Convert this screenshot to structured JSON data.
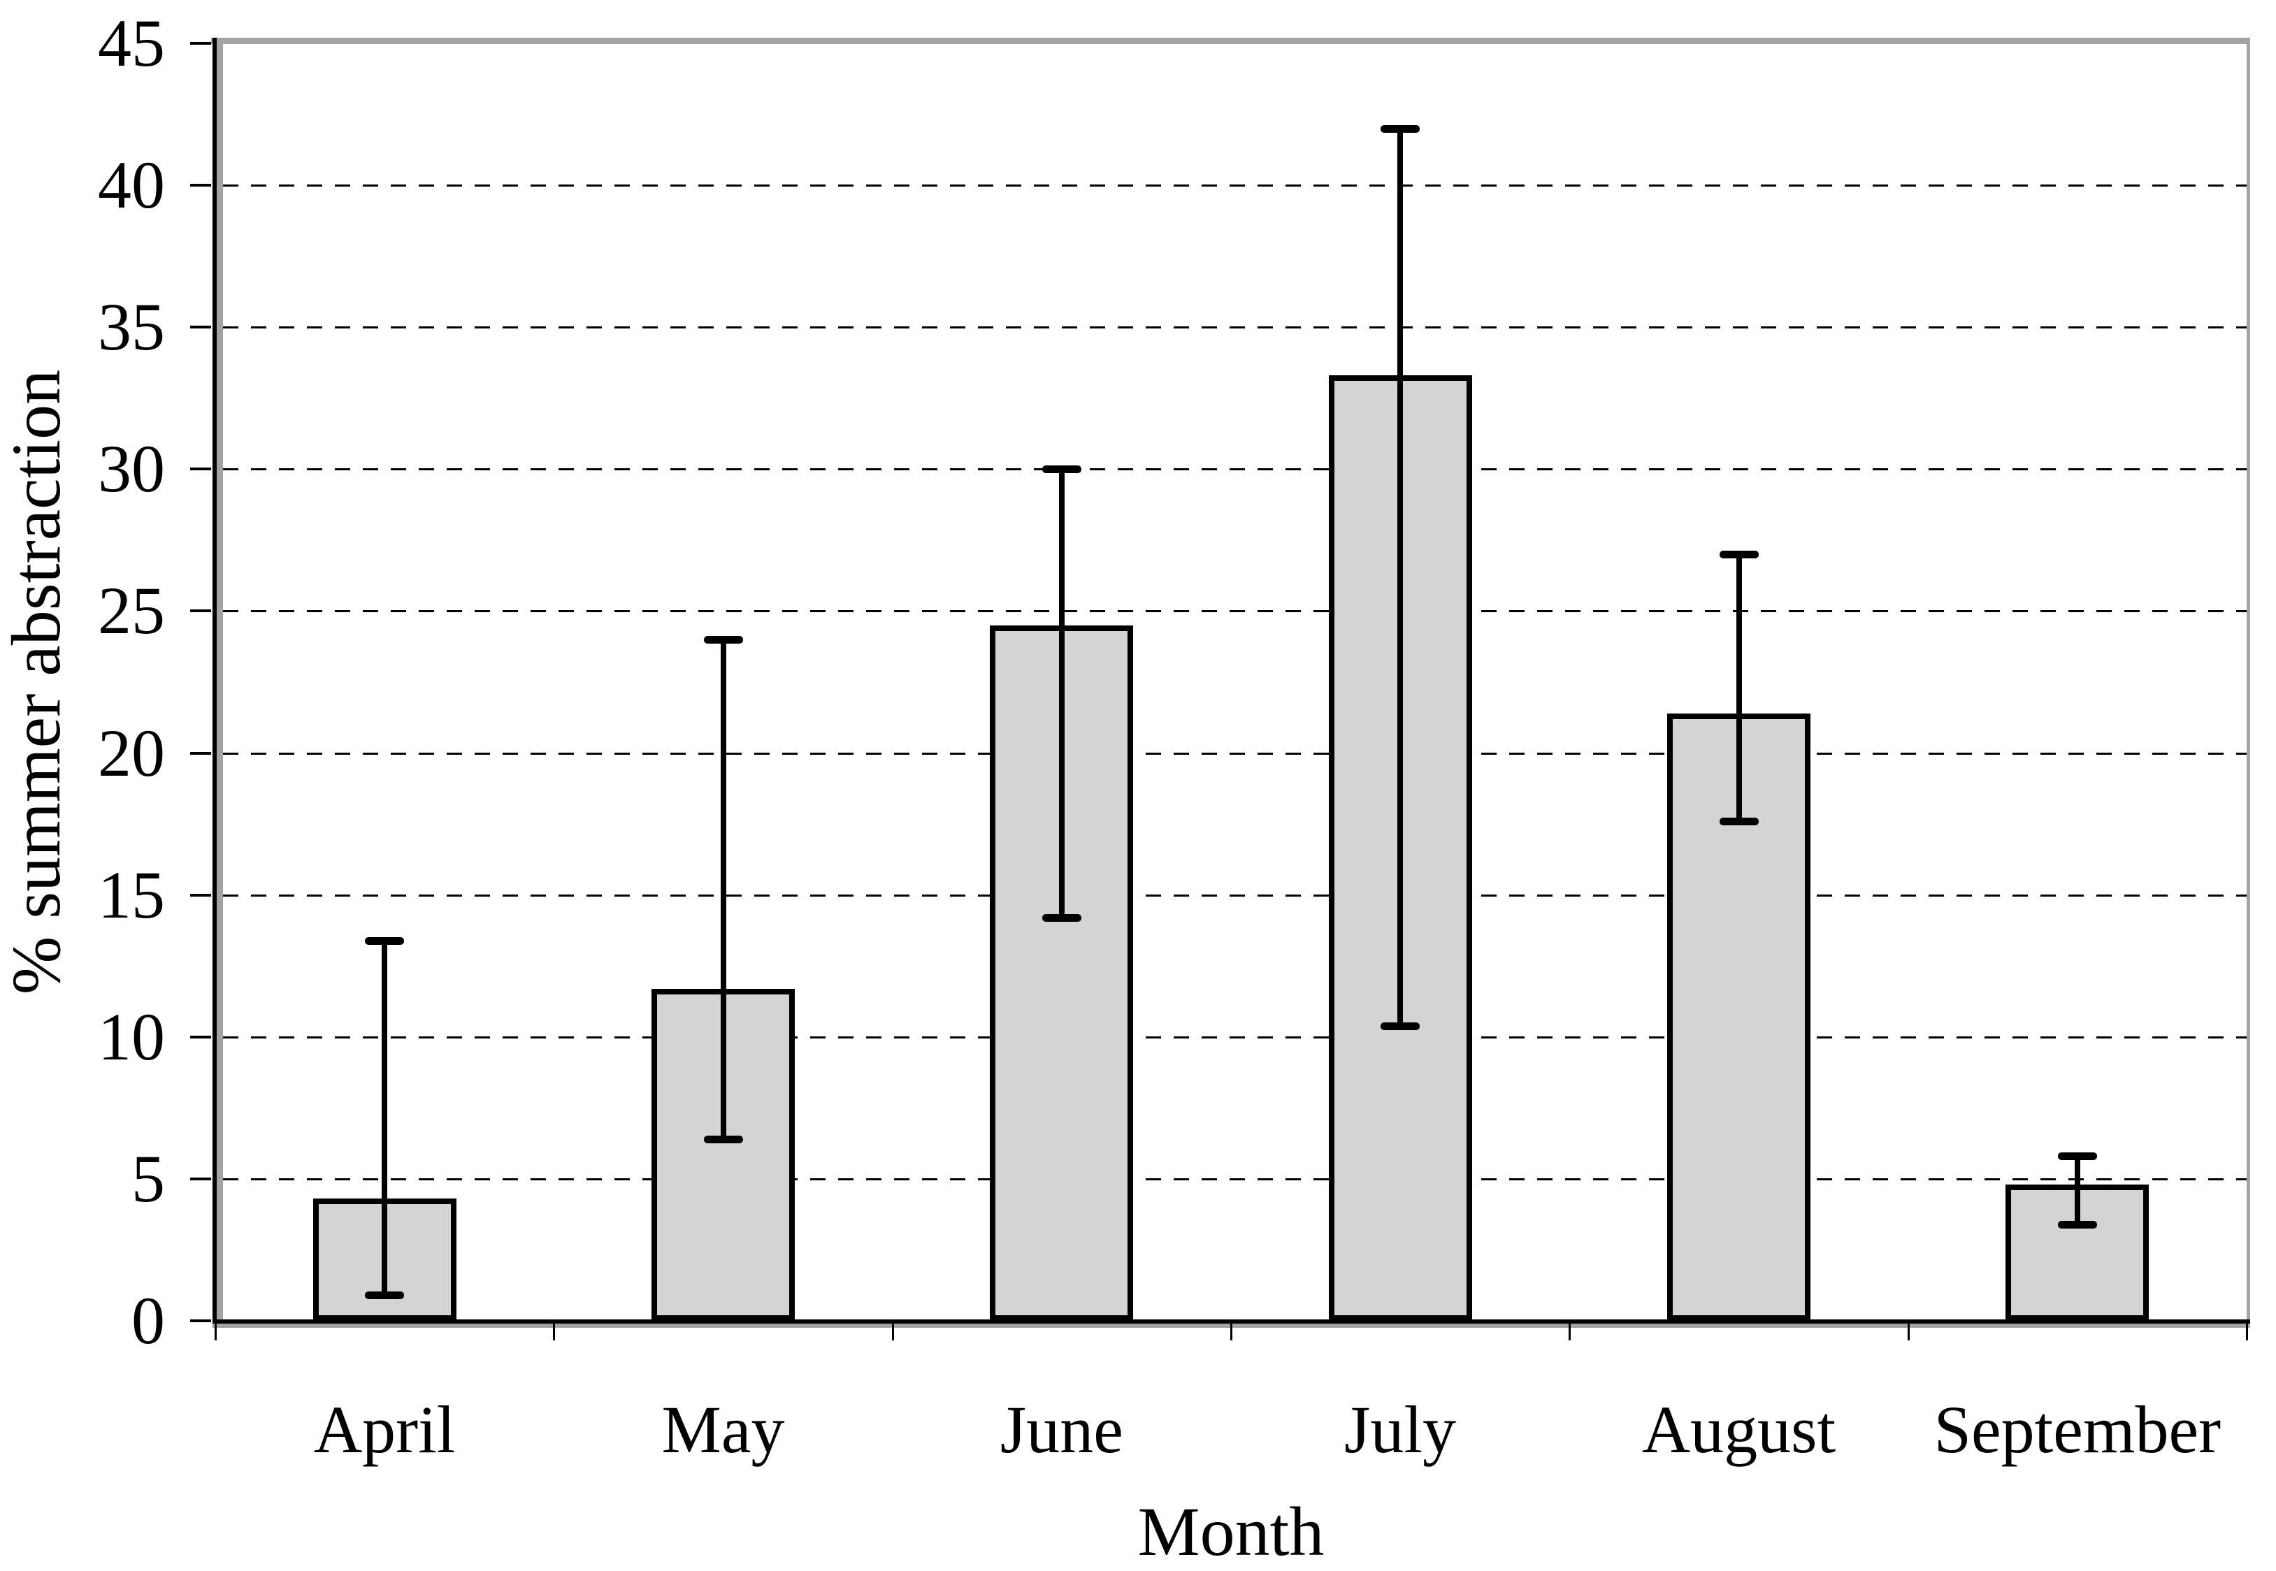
{
  "chart_data": {
    "type": "bar",
    "title": "",
    "xlabel": "Month",
    "ylabel": "% summer abstraction",
    "categories": [
      "April",
      "May",
      "June",
      "July",
      "August",
      "September"
    ],
    "series": [
      {
        "name": "% summer abstraction",
        "values": [
          4.3,
          11.7,
          24.5,
          33.3,
          21.4,
          4.8
        ],
        "error_upper": [
          13.4,
          24.0,
          30.0,
          42.0,
          27.0,
          5.8
        ],
        "error_lower": [
          0.9,
          6.4,
          14.2,
          10.4,
          17.6,
          3.4
        ]
      }
    ],
    "ylim": [
      0,
      45
    ],
    "yticks": [
      0,
      5,
      10,
      15,
      20,
      25,
      30,
      35,
      40,
      45
    ],
    "ytick_labels": [
      "0",
      "5",
      "10",
      "15",
      "20",
      "25",
      "30",
      "35",
      "40",
      "45"
    ],
    "gridlines_at": [
      5,
      10,
      15,
      20,
      25,
      30,
      35,
      40
    ],
    "grid_style": "dashed-horizontal",
    "legend": "none",
    "colors": {
      "bar_fill": "#d4d4d4",
      "bar_border": "#000000",
      "axis": "#000000",
      "plot_frame": "#a3a3a3",
      "background": "#ffffff"
    }
  }
}
